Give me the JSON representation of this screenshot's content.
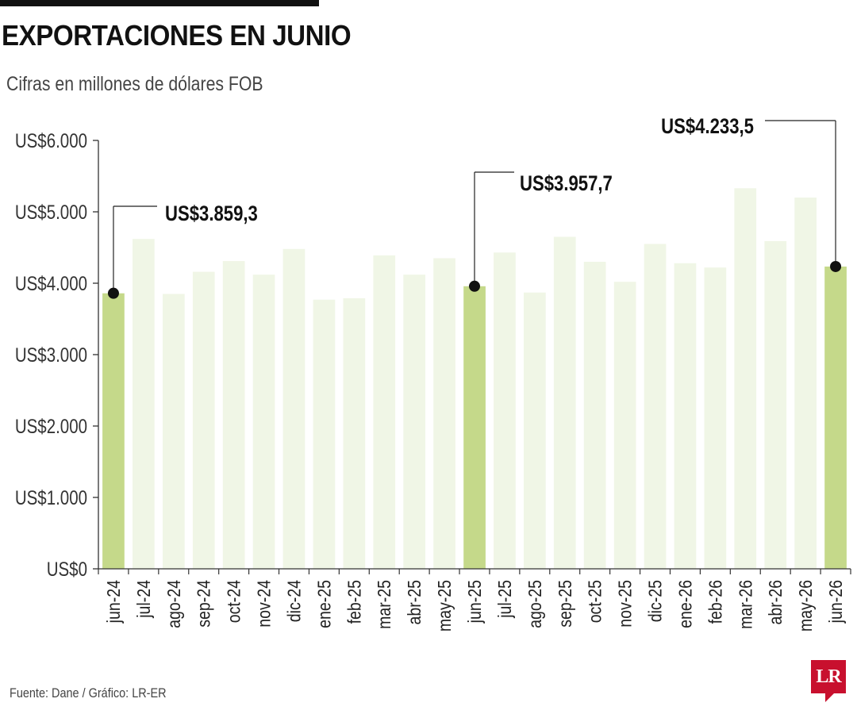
{
  "header": {
    "title": "EXPORTACIONES EN JUNIO",
    "subtitle": "Cifras en millones de dólares FOB"
  },
  "footer": {
    "source": "Fuente: Dane / Gráfico: LR-ER",
    "logo_text": "LR"
  },
  "colors": {
    "highlight_bar": "#c5d98a",
    "regular_bar": "#f0f6e6",
    "axis": "#333333",
    "marker": "#111111"
  },
  "chart_data": {
    "type": "bar",
    "title": "EXPORTACIONES EN JUNIO",
    "subtitle": "Cifras en millones de dólares FOB",
    "categories": [
      "jun-24",
      "jul-24",
      "ago-24",
      "sep-24",
      "oct-24",
      "nov-24",
      "dic-24",
      "ene-25",
      "feb-25",
      "mar-25",
      "abr-25",
      "may-25",
      "jun-25",
      "jul-25",
      "ago-25",
      "sep-25",
      "oct-25",
      "nov-25",
      "dic-25",
      "ene-26",
      "feb-26",
      "mar-26",
      "abr-26",
      "may-26",
      "jun-26"
    ],
    "values": [
      3859.3,
      4620,
      3850,
      4160,
      4310,
      4120,
      4480,
      3770,
      3790,
      4390,
      4120,
      4350,
      3957.7,
      4430,
      3870,
      4650,
      4300,
      4020,
      4550,
      4280,
      4220,
      5330,
      4590,
      5200,
      4233.5
    ],
    "highlighted": [
      "jun-24",
      "jun-25",
      "jun-26"
    ],
    "ylim": [
      0,
      6000
    ],
    "yticks": [
      {
        "value": 0,
        "label": "US$0"
      },
      {
        "value": 1000,
        "label": "US$1.000"
      },
      {
        "value": 2000,
        "label": "US$2.000"
      },
      {
        "value": 3000,
        "label": "US$3.000"
      },
      {
        "value": 4000,
        "label": "US$4.000"
      },
      {
        "value": 5000,
        "label": "US$5.000"
      },
      {
        "value": 6000,
        "label": "US$6.000"
      }
    ],
    "annotations": [
      {
        "category": "jun-24",
        "value": 3859.3,
        "label": "US$3.859,3"
      },
      {
        "category": "jun-25",
        "value": 3957.7,
        "label": "US$3.957,7"
      },
      {
        "category": "jun-26",
        "value": 4233.5,
        "label": "US$4.233,5"
      }
    ],
    "xlabel": "",
    "ylabel": "",
    "grid": false
  }
}
